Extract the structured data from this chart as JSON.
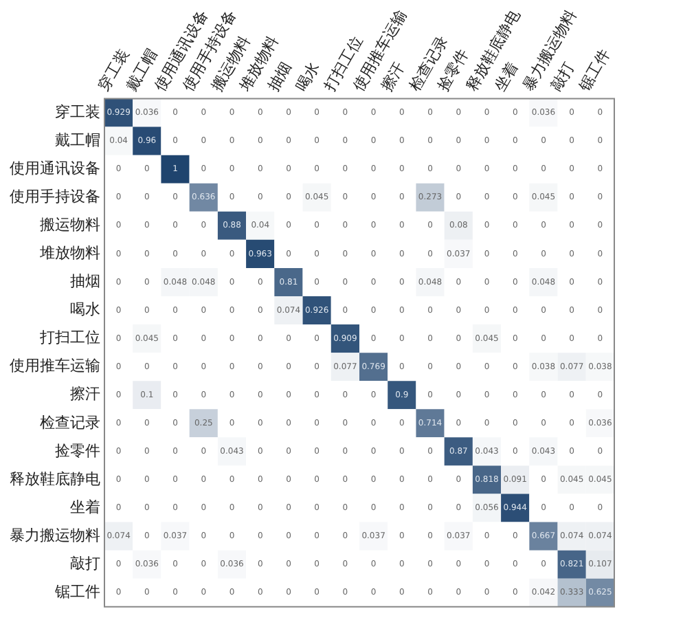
{
  "chart_data": {
    "type": "heatmap",
    "categories": [
      "穿工装",
      "戴工帽",
      "使用通讯设备",
      "使用手持设备",
      "搬运物料",
      "堆放物料",
      "抽烟",
      "喝水",
      "打扫工位",
      "使用推车运输",
      "擦汗",
      "检查记录",
      "捡零件",
      "释放鞋底静电",
      "坐着",
      "暴力搬运物料",
      "敲打",
      "锯工件"
    ],
    "y_categories": [
      "穿工装",
      "戴工帽",
      "使用通讯设备",
      "使用手持设备",
      "搬运物料",
      "堆放物料",
      "抽烟",
      "喝水",
      "打扫工位",
      "使用推车运输",
      "擦汗",
      "检查记录",
      "捡零件",
      "释放鞋底静电",
      "坐着",
      "暴力搬运物料",
      "敲打",
      "锯工件"
    ],
    "cells": [
      [
        0.929,
        0.036,
        0,
        0,
        0,
        0,
        0,
        0,
        0,
        0,
        0,
        0,
        0,
        0,
        0,
        0.036,
        0,
        0
      ],
      [
        0.04,
        0.96,
        0,
        0,
        0,
        0,
        0,
        0,
        0,
        0,
        0,
        0,
        0,
        0,
        0,
        0,
        0,
        0
      ],
      [
        0,
        0,
        1,
        0,
        0,
        0,
        0,
        0,
        0,
        0,
        0,
        0,
        0,
        0,
        0,
        0,
        0,
        0
      ],
      [
        0,
        0,
        0,
        0.636,
        0,
        0,
        0,
        0.045,
        0,
        0,
        0,
        0.273,
        0,
        0,
        0,
        0.045,
        0,
        0
      ],
      [
        0,
        0,
        0,
        0,
        0.88,
        0.04,
        0,
        0,
        0,
        0,
        0,
        0,
        0.08,
        0,
        0,
        0,
        0,
        0
      ],
      [
        0,
        0,
        0,
        0,
        0,
        0.963,
        0,
        0,
        0,
        0,
        0,
        0,
        0.037,
        0,
        0,
        0,
        0,
        0
      ],
      [
        0,
        0,
        0.048,
        0.048,
        0,
        0,
        0.81,
        0,
        0,
        0,
        0,
        0.048,
        0,
        0,
        0,
        0.048,
        0,
        0
      ],
      [
        0,
        0,
        0,
        0,
        0,
        0,
        0.074,
        0.926,
        0,
        0,
        0,
        0,
        0,
        0,
        0,
        0,
        0,
        0
      ],
      [
        0,
        0.045,
        0,
        0,
        0,
        0,
        0,
        0,
        0.909,
        0,
        0,
        0,
        0,
        0.045,
        0,
        0,
        0,
        0
      ],
      [
        0,
        0,
        0,
        0,
        0,
        0,
        0,
        0,
        0.077,
        0.769,
        0,
        0,
        0,
        0,
        0,
        0.038,
        0.077,
        0.038
      ],
      [
        0,
        0.1,
        0,
        0,
        0,
        0,
        0,
        0,
        0,
        0,
        0.9,
        0,
        0,
        0,
        0,
        0,
        0,
        0
      ],
      [
        0,
        0,
        0,
        0.25,
        0,
        0,
        0,
        0,
        0,
        0,
        0,
        0.714,
        0,
        0,
        0,
        0,
        0,
        0.036
      ],
      [
        0,
        0,
        0,
        0,
        0.043,
        0,
        0,
        0,
        0,
        0,
        0,
        0,
        0.87,
        0.043,
        0,
        0.043,
        0,
        0
      ],
      [
        0,
        0,
        0,
        0,
        0,
        0,
        0,
        0,
        0,
        0,
        0,
        0,
        0,
        0.818,
        0.091,
        0,
        0.045,
        0.045
      ],
      [
        0,
        0,
        0,
        0,
        0,
        0,
        0,
        0,
        0,
        0,
        0,
        0,
        0,
        0.056,
        0.944,
        0,
        0,
        0
      ],
      [
        0.074,
        0,
        0.037,
        0,
        0,
        0,
        0,
        0,
        0,
        0.037,
        0,
        0,
        0.037,
        0,
        0,
        0.667,
        0.074,
        0.074
      ],
      [
        0,
        0.036,
        0,
        0,
        0.036,
        0,
        0,
        0,
        0,
        0,
        0,
        0,
        0,
        0,
        0,
        0,
        0.821,
        0.107
      ],
      [
        0,
        0,
        0,
        0,
        0,
        0,
        0,
        0,
        0,
        0,
        0,
        0,
        0,
        0,
        0,
        0.042,
        0.333,
        0.625
      ]
    ],
    "data_labels": true
  }
}
